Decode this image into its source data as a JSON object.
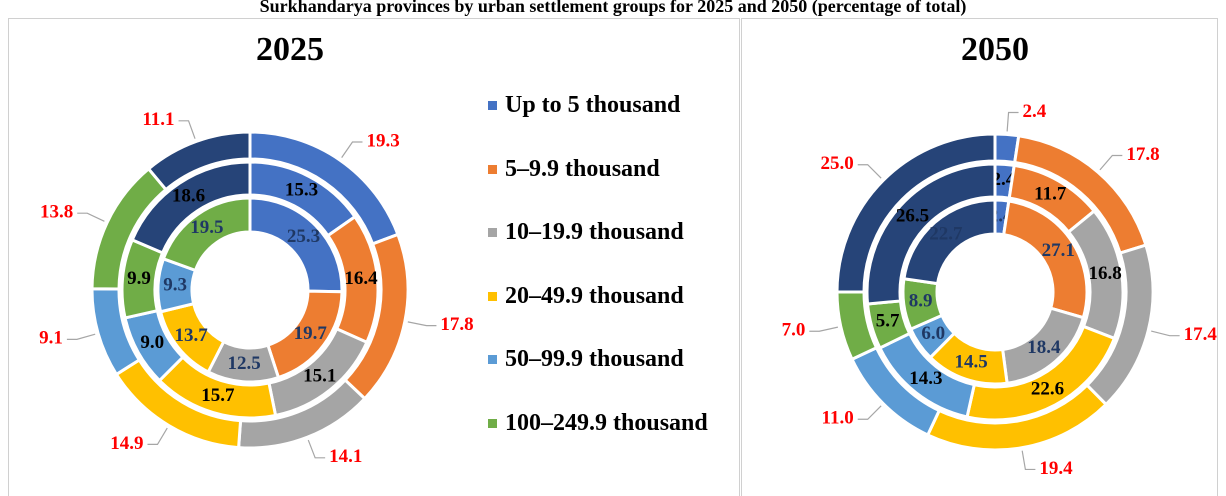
{
  "chart_data": {
    "type": "donut",
    "title": "Surkhandarya provinces by urban settlement groups for 2025 and 2050 (percentage of total)",
    "series": [
      {
        "name": "Up to 5 thousand",
        "color": "#4472c4"
      },
      {
        "name": "5–9.9 thousand",
        "color": "#ed7d31"
      },
      {
        "name": "10–19.9 thousand",
        "color": "#a5a5a5"
      },
      {
        "name": "20–49.9 thousand",
        "color": "#ffc000"
      },
      {
        "name": "50–99.9 thousand",
        "color": "#5b9bd5"
      },
      {
        "name": "100–249.9 thousand",
        "color": "#70ad47"
      },
      {
        "name": null,
        "color": "#264478"
      }
    ],
    "panels": [
      {
        "title": "2025",
        "rings": [
          {
            "values": [
              25.3,
              19.7,
              12.5,
              13.7,
              9.3,
              19.5,
              null
            ]
          },
          {
            "values": [
              15.3,
              16.4,
              15.1,
              15.7,
              9.0,
              9.9,
              18.6
            ],
            "value_labels": [
              "15.3",
              "16.4",
              "15.1",
              "15.7",
              "9.0",
              "9.9",
              "18.6"
            ]
          },
          {
            "values": [
              19.3,
              17.8,
              14.1,
              14.9,
              9.1,
              13.8,
              11.1
            ]
          }
        ]
      },
      {
        "title": "2050",
        "rings": [
          {
            "values": [
              2.4,
              27.1,
              18.4,
              14.5,
              6.0,
              8.9,
              22.7
            ],
            "value_labels": [
              "2.4",
              "27.1",
              "18.4",
              "14.5",
              "6.0",
              "8.9",
              "22.7"
            ]
          },
          {
            "values": [
              2.4,
              11.7,
              16.8,
              22.6,
              14.3,
              5.7,
              26.5
            ]
          },
          {
            "values": [
              2.4,
              17.8,
              17.4,
              19.4,
              11.0,
              7.0,
              25.0
            ],
            "value_labels": [
              "2.4",
              "17.8",
              "17.4",
              "19.4",
              "11.0",
              "7.0",
              "25.0"
            ]
          }
        ]
      }
    ]
  }
}
